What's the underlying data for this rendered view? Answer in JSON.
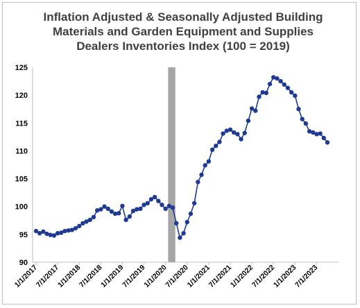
{
  "chart_data": {
    "type": "line",
    "title_lines": [
      "Inflation Adjusted & Seasonally Adjusted Building",
      "Materials and Garden Equipment and Supplies",
      "Dealers Inventories Index (100 = 2019)"
    ],
    "xlabel": "",
    "ylabel": "",
    "ylim": [
      90,
      125
    ],
    "yticks": [
      90,
      95,
      100,
      105,
      110,
      115,
      120,
      125
    ],
    "xtick_labels": [
      "1/1/2017",
      "7/1/2017",
      "1/1/2018",
      "7/1/2018",
      "1/1/2019",
      "7/1/2019",
      "1/1/2020",
      "7/1/2020",
      "1/1/2021",
      "7/1/2021",
      "1/1/2022",
      "7/1/2022",
      "1/1/2023",
      "7/1/2023"
    ],
    "grid": false,
    "legend": "none",
    "recession_shading": {
      "start": "2020-02",
      "end": "2020-04"
    },
    "colors": {
      "line": "#1f3a93",
      "marker": "#1f3a93",
      "shade": "#a6a6a6",
      "title": "#404040"
    },
    "series": [
      {
        "start": "2017-01",
        "frequency": "monthly",
        "values": [
          95.6,
          95.2,
          95.5,
          95.1,
          94.9,
          94.8,
          95.2,
          95.3,
          95.6,
          95.7,
          95.8,
          96.1,
          96.5,
          97.0,
          97.3,
          97.6,
          98.1,
          99.3,
          99.5,
          100.0,
          99.6,
          99.1,
          98.7,
          98.8,
          100.1,
          97.6,
          98.2,
          99.2,
          99.5,
          99.6,
          100.3,
          100.6,
          101.3,
          101.7,
          101.0,
          100.3,
          99.6,
          100.1,
          99.8,
          97.0,
          94.4,
          95.2,
          97.2,
          98.7,
          100.6,
          104.4,
          105.7,
          107.4,
          108.1,
          110.2,
          110.9,
          111.6,
          113.1,
          113.6,
          113.8,
          113.3,
          113.0,
          112.1,
          113.2,
          115.4,
          117.6,
          117.2,
          119.7,
          120.5,
          120.4,
          122.0,
          123.2,
          123.0,
          122.5,
          121.9,
          121.3,
          120.5,
          119.9,
          117.5,
          115.7,
          114.9,
          113.5,
          113.3,
          113.0,
          113.1,
          112.3,
          111.5
        ]
      }
    ]
  }
}
